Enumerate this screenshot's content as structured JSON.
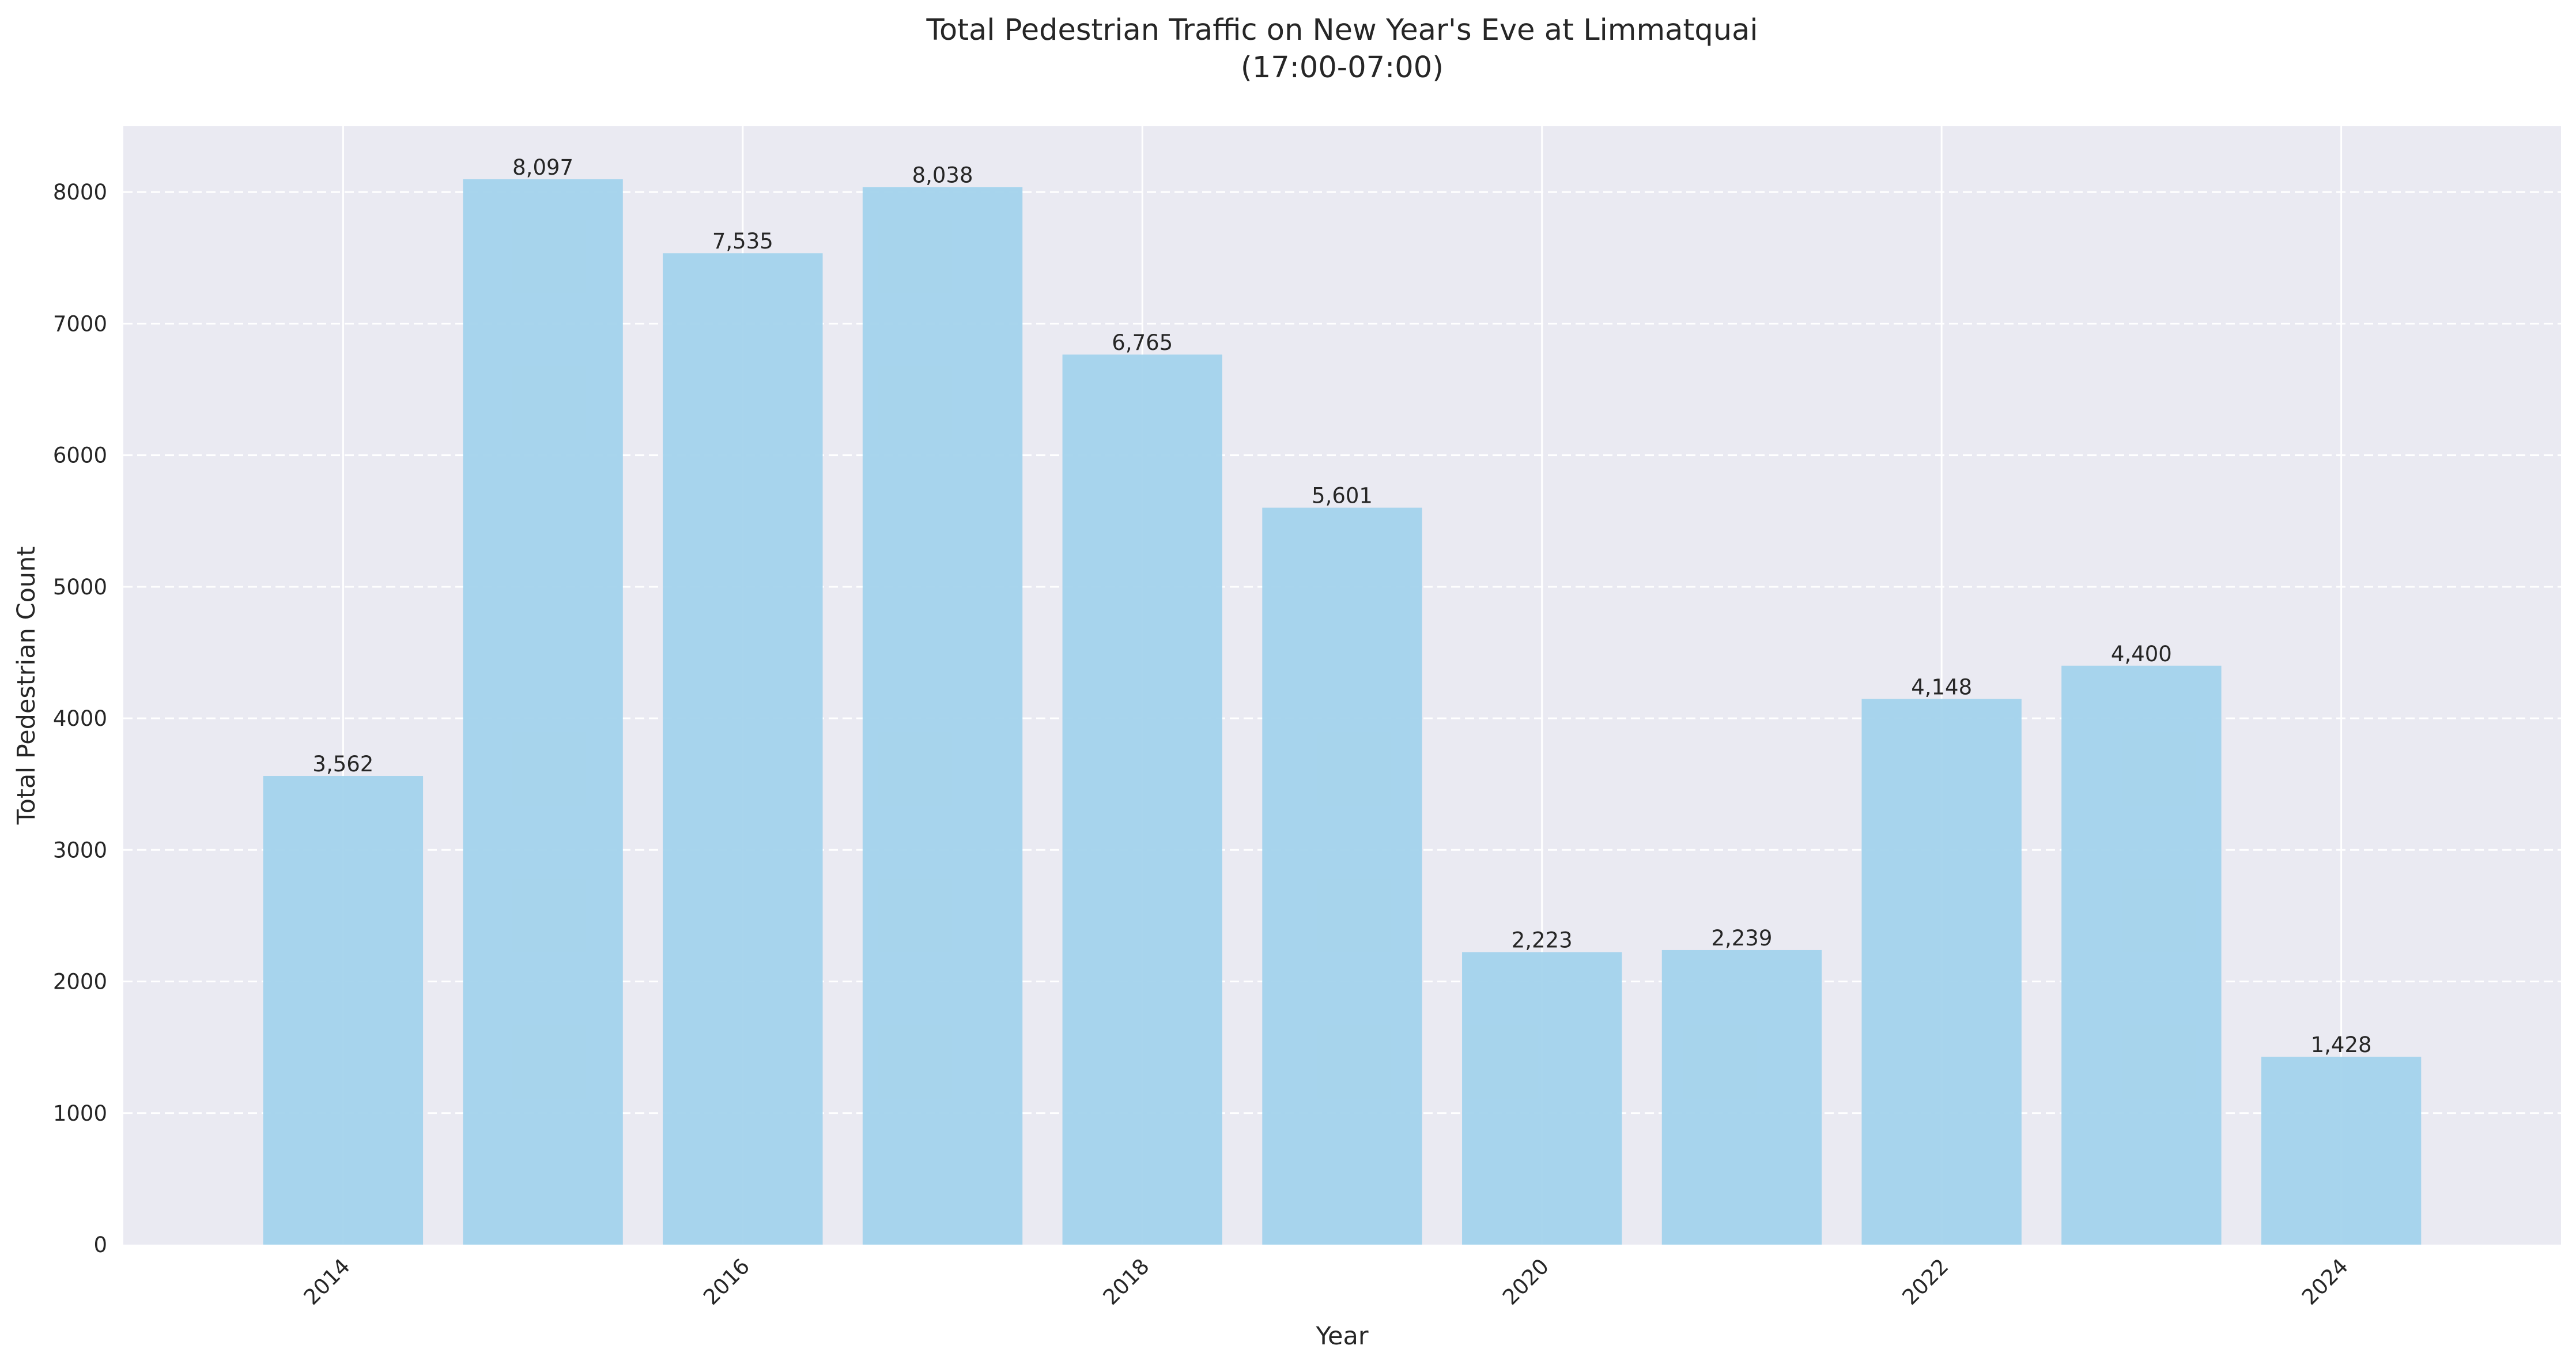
{
  "chart_data": {
    "type": "bar",
    "title": "Total Pedestrian Traffic on New Year's Eve at Limmatquai",
    "subtitle": "(17:00-07:00)",
    "xlabel": "Year",
    "ylabel": "Total Pedestrian Count",
    "categories": [
      2014,
      2015,
      2016,
      2017,
      2018,
      2019,
      2020,
      2021,
      2022,
      2023,
      2024
    ],
    "values": [
      3562,
      8097,
      7535,
      8038,
      6765,
      5601,
      2223,
      2239,
      4148,
      4400,
      1428
    ],
    "value_labels": [
      "3,562",
      "8,097",
      "7,535",
      "8,038",
      "6,765",
      "5,601",
      "2,223",
      "2,239",
      "4,148",
      "4,400",
      "1,428"
    ],
    "xlim": [
      2012.9,
      2025.1
    ],
    "ylim": [
      0,
      8500
    ],
    "x_ticks": [
      2014,
      2016,
      2018,
      2020,
      2022,
      2024
    ],
    "x_tick_labels": [
      "2014",
      "2016",
      "2018",
      "2020",
      "2022",
      "2024"
    ],
    "y_ticks": [
      0,
      1000,
      2000,
      3000,
      4000,
      5000,
      6000,
      7000,
      8000
    ],
    "y_tick_labels": [
      "0",
      "1000",
      "2000",
      "3000",
      "4000",
      "5000",
      "6000",
      "7000",
      "8000"
    ],
    "x_tick_rotation": 45,
    "grid": true,
    "colors": {
      "bar": "#a3d3ec",
      "plot_background": "#eaeaf2",
      "grid": "#ffffff",
      "text": "#262626"
    }
  }
}
